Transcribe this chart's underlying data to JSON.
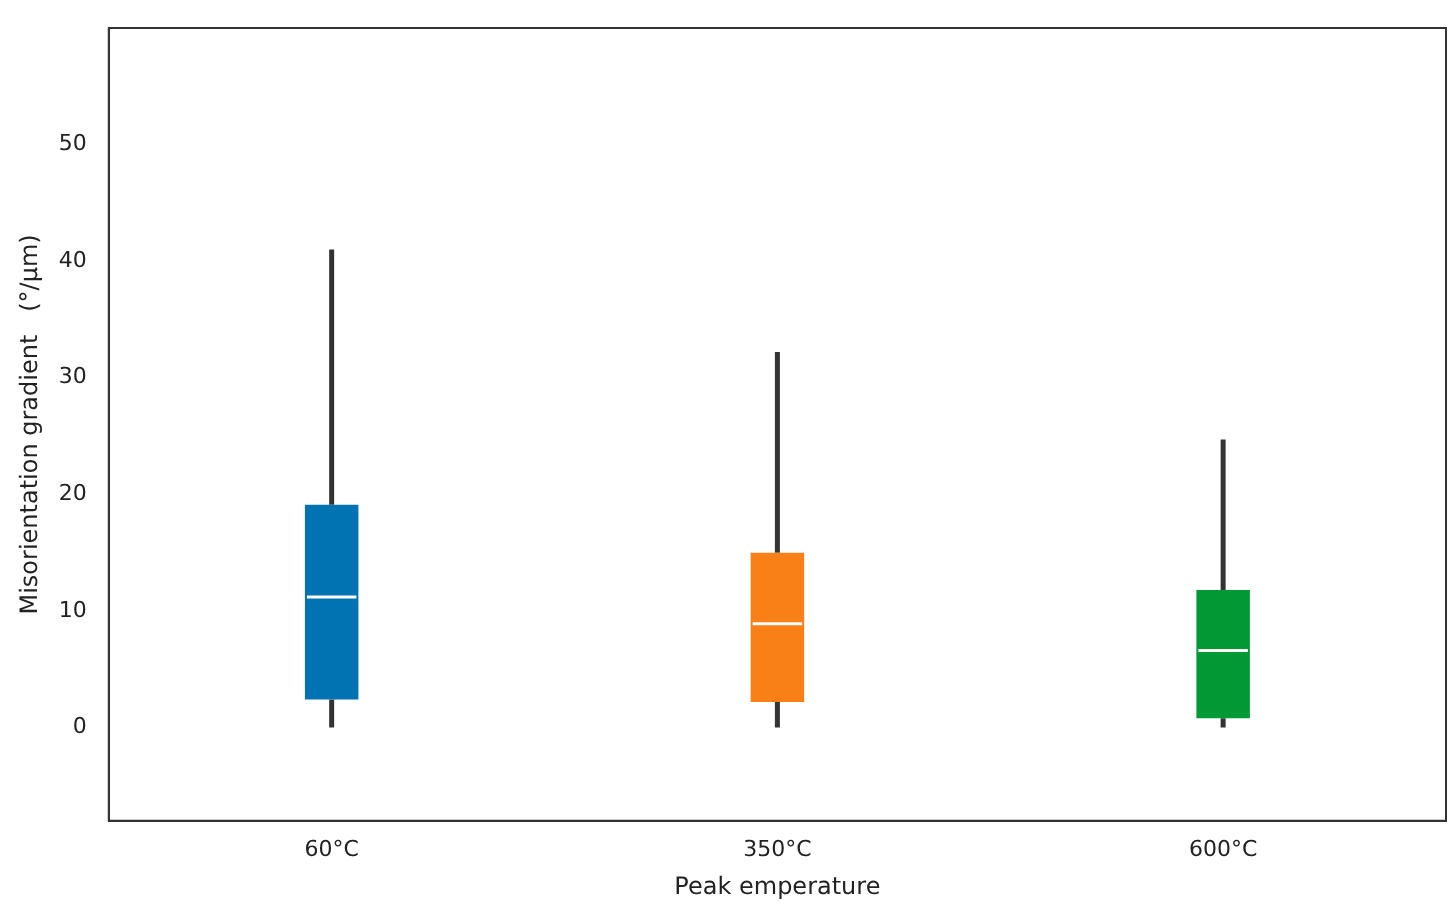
{
  "chart_data": {
    "type": "box",
    "categories": [
      "60°C",
      "350°C",
      "600°C"
    ],
    "boxes": [
      {
        "low": 0,
        "q1": 2.4,
        "median": 11.2,
        "q3": 19.1,
        "high": 41
      },
      {
        "low": 0,
        "q1": 2.2,
        "median": 8.9,
        "q3": 15.0,
        "high": 32.2
      },
      {
        "low": 0,
        "q1": 0.8,
        "median": 6.6,
        "q3": 11.8,
        "high": 24.7
      }
    ],
    "colors": [
      "#0173b2",
      "#f97f17",
      "#029833"
    ],
    "xlabel": "Peak emperature",
    "ylabel": "Misorientation gradient   (°/μm)",
    "ylim": [
      -8,
      60
    ],
    "yticks": [
      0,
      10,
      20,
      30,
      40,
      50
    ],
    "grid": false,
    "legend": false
  }
}
